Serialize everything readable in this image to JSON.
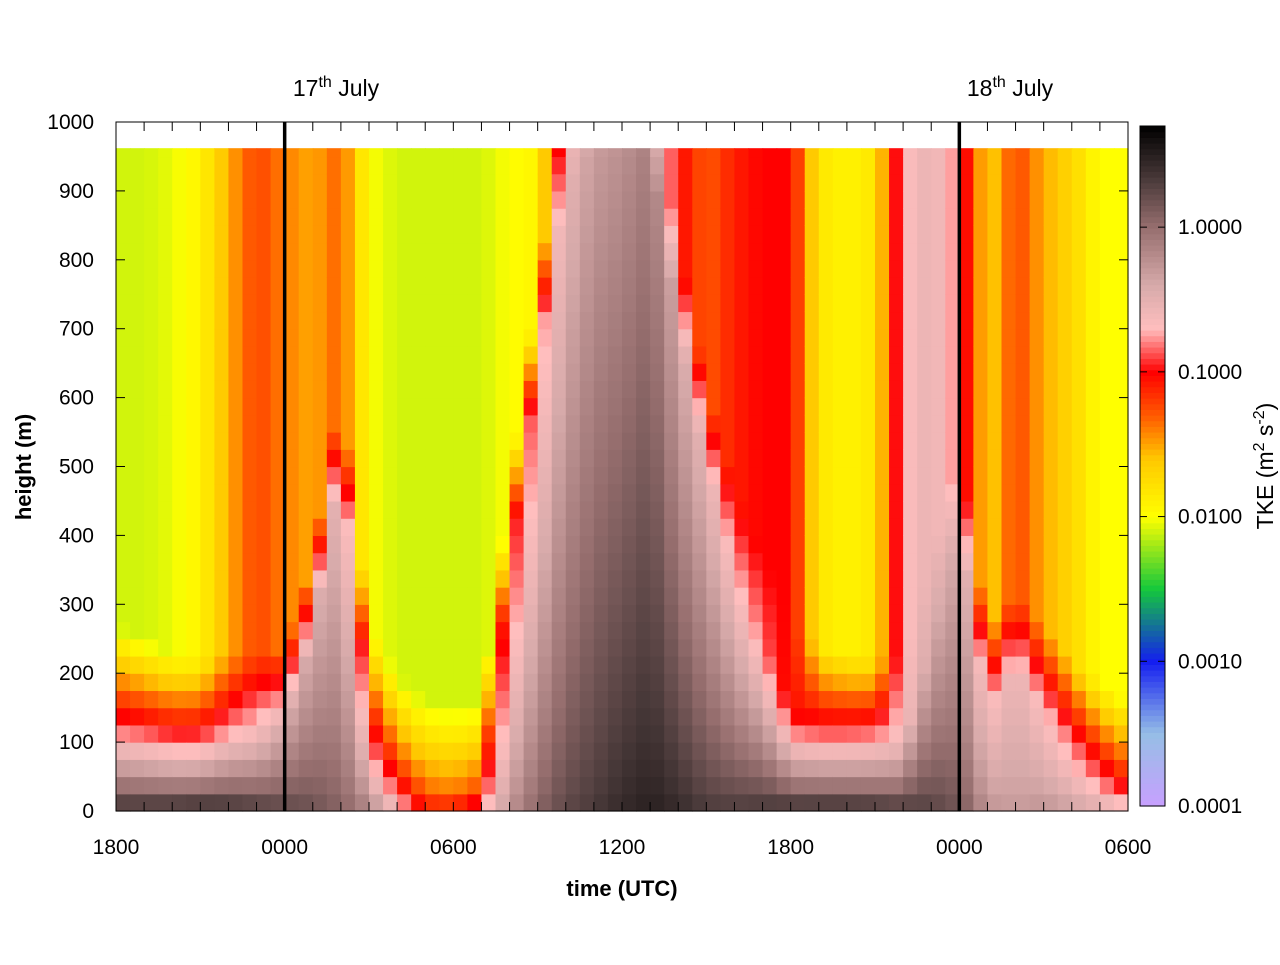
{
  "chart_data": {
    "type": "heatmap",
    "title": "",
    "xlabel": "time (UTC)",
    "ylabel": "height (m)",
    "x_tick_labels": [
      "1800",
      "0000",
      "0600",
      "1200",
      "1800",
      "0000",
      "0600"
    ],
    "x_hours_since_start": [
      0,
      6,
      12,
      18,
      24,
      30,
      36
    ],
    "xlim_hours": [
      0,
      36
    ],
    "y_ticks": [
      0,
      100,
      200,
      300,
      400,
      500,
      600,
      700,
      800,
      900,
      1000
    ],
    "ylim": [
      0,
      1000
    ],
    "data_top_m": 962,
    "date_markers": [
      {
        "label_main": "17",
        "label_sup": "th",
        "label_rest": " July",
        "at_hours": 6
      },
      {
        "label_main": "18",
        "label_sup": "th",
        "label_rest": " July",
        "at_hours": 30
      }
    ],
    "colorbar": {
      "label_main": "TKE (m",
      "label_sup1": "2",
      "label_mid": " s",
      "label_sup2": "-2",
      "label_end": ")",
      "scale": "log",
      "range": [
        0.0001,
        5.0
      ],
      "ticks": [
        {
          "value": 0.0001,
          "label": "0.0001"
        },
        {
          "value": 0.001,
          "label": "0.0010"
        },
        {
          "value": 0.01,
          "label": "0.0100"
        },
        {
          "value": 0.1,
          "label": "0.1000"
        },
        {
          "value": 1.0,
          "label": "1.0000"
        }
      ]
    },
    "time_columns_hours_step": 0.5,
    "height_levels_m_step": 25,
    "profile_keyframes": [
      {
        "t": 0,
        "sfc": 3.0,
        "blh": 150,
        "ftke": 0.08,
        "aloft": 0.008
      },
      {
        "t": 1,
        "sfc": 3.0,
        "blh": 130,
        "ftke": 0.1,
        "aloft": 0.008
      },
      {
        "t": 2,
        "sfc": 3.2,
        "blh": 110,
        "ftke": 0.12,
        "aloft": 0.009
      },
      {
        "t": 3,
        "sfc": 3.5,
        "blh": 100,
        "ftke": 0.15,
        "aloft": 0.012
      },
      {
        "t": 4,
        "sfc": 3.0,
        "blh": 110,
        "ftke": 0.2,
        "aloft": 0.03
      },
      {
        "t": 5,
        "sfc": 2.5,
        "blh": 110,
        "ftke": 0.25,
        "aloft": 0.06
      },
      {
        "t": 6,
        "sfc": 2.0,
        "blh": 120,
        "ftke": 0.4,
        "aloft": 0.04
      },
      {
        "t": 7,
        "sfc": 1.6,
        "blh": 250,
        "ftke": 0.4,
        "aloft": 0.03
      },
      {
        "t": 8,
        "sfc": 1.2,
        "blh": 500,
        "ftke": 0.3,
        "aloft": 0.05
      },
      {
        "t": 9,
        "sfc": 0.8,
        "blh": 150,
        "ftke": 0.08,
        "aloft": 0.01
      },
      {
        "t": 10,
        "sfc": 0.3,
        "blh": 80,
        "ftke": 0.05,
        "aloft": 0.008
      },
      {
        "t": 11,
        "sfc": 0.1,
        "blh": 40,
        "ftke": 0.04,
        "aloft": 0.008
      },
      {
        "t": 12,
        "sfc": 0.1,
        "blh": 30,
        "ftke": 0.04,
        "aloft": 0.008
      },
      {
        "t": 13,
        "sfc": 0.2,
        "blh": 40,
        "ftke": 0.05,
        "aloft": 0.008
      },
      {
        "t": 14,
        "sfc": 0.6,
        "blh": 350,
        "ftke": 0.1,
        "aloft": 0.01
      },
      {
        "t": 15,
        "sfc": 1.2,
        "blh": 650,
        "ftke": 0.15,
        "aloft": 0.012
      },
      {
        "t": 16,
        "sfc": 1.8,
        "blh": 900,
        "ftke": 0.3,
        "aloft": 0.2
      },
      {
        "t": 17,
        "sfc": 2.2,
        "blh": 950,
        "ftke": 0.5,
        "aloft": 0.3
      },
      {
        "t": 18,
        "sfc": 2.8,
        "blh": 950,
        "ftke": 0.6,
        "aloft": 0.3
      },
      {
        "t": 19,
        "sfc": 3.2,
        "blh": 950,
        "ftke": 0.8,
        "aloft": 0.4
      },
      {
        "t": 20,
        "sfc": 2.8,
        "blh": 700,
        "ftke": 0.4,
        "aloft": 0.1
      },
      {
        "t": 21,
        "sfc": 2.2,
        "blh": 500,
        "ftke": 0.3,
        "aloft": 0.05
      },
      {
        "t": 22,
        "sfc": 2.2,
        "blh": 350,
        "ftke": 0.2,
        "aloft": 0.08
      },
      {
        "t": 23,
        "sfc": 2.5,
        "blh": 250,
        "ftke": 0.15,
        "aloft": 0.1
      },
      {
        "t": 24,
        "sfc": 3.0,
        "blh": 150,
        "ftke": 0.08,
        "aloft": 0.1
      },
      {
        "t": 25,
        "sfc": 3.2,
        "blh": 120,
        "ftke": 0.12,
        "aloft": 0.015
      },
      {
        "t": 26,
        "sfc": 3.2,
        "blh": 110,
        "ftke": 0.15,
        "aloft": 0.012
      },
      {
        "t": 27,
        "sfc": 3.0,
        "blh": 100,
        "ftke": 0.2,
        "aloft": 0.015
      },
      {
        "t": 28,
        "sfc": 2.5,
        "blh": 100,
        "ftke": 0.25,
        "aloft": 0.2
      },
      {
        "t": 29,
        "sfc": 2.0,
        "blh": 250,
        "ftke": 0.4,
        "aloft": 0.3
      },
      {
        "t": 30,
        "sfc": 1.5,
        "blh": 400,
        "ftke": 0.4,
        "aloft": 0.15
      },
      {
        "t": 31,
        "sfc": 0.6,
        "blh": 150,
        "ftke": 0.2,
        "aloft": 0.02
      },
      {
        "t": 32,
        "sfc": 0.5,
        "blh": 200,
        "ftke": 0.3,
        "aloft": 0.06
      },
      {
        "t": 33,
        "sfc": 0.6,
        "blh": 150,
        "ftke": 0.2,
        "aloft": 0.03
      },
      {
        "t": 34,
        "sfc": 0.5,
        "blh": 100,
        "ftke": 0.15,
        "aloft": 0.02
      },
      {
        "t": 35,
        "sfc": 0.4,
        "blh": 70,
        "ftke": 0.1,
        "aloft": 0.01
      },
      {
        "t": 36,
        "sfc": 0.3,
        "blh": 40,
        "ftke": 0.08,
        "aloft": 0.01
      }
    ]
  }
}
